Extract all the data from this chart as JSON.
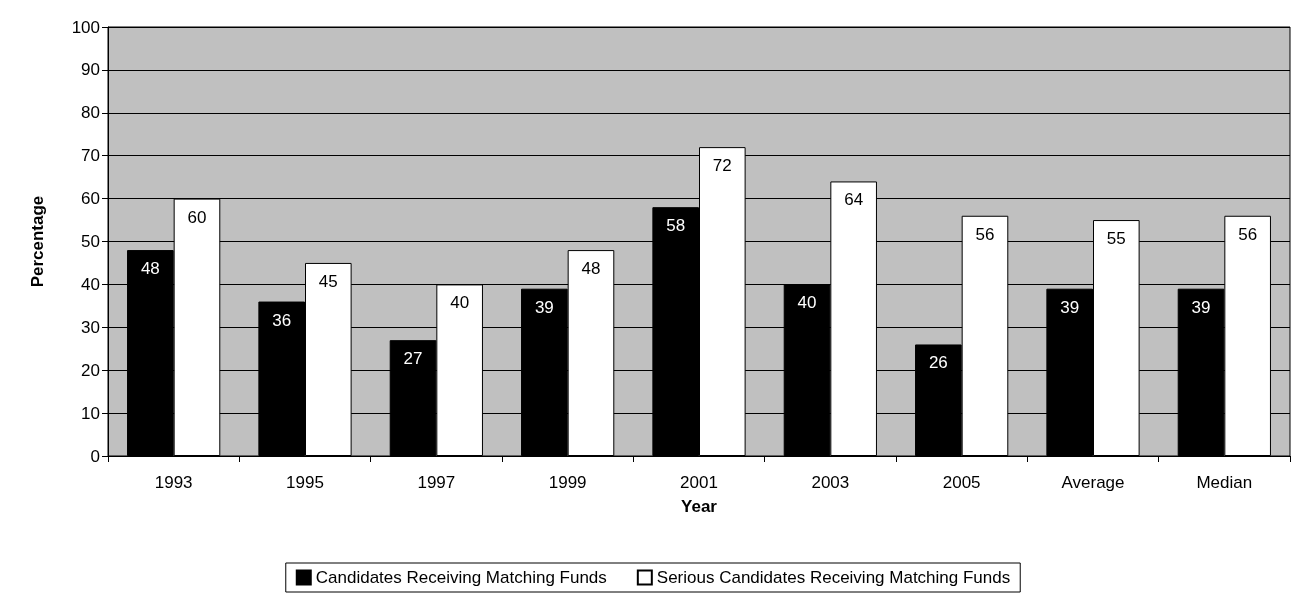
{
  "chart_data": {
    "type": "bar",
    "xlabel": "Year",
    "ylabel": "Percentage",
    "categories": [
      "1993",
      "1995",
      "1997",
      "1999",
      "2001",
      "2003",
      "2005",
      "Average",
      "Median"
    ],
    "series": [
      {
        "name": "Candidates Receiving Matching Funds",
        "color": "#000000",
        "values": [
          48,
          36,
          27,
          39,
          58,
          40,
          26,
          39,
          39
        ]
      },
      {
        "name": "Serious Candidates Receiving Matching Funds",
        "color": "#ffffff",
        "values": [
          60,
          45,
          40,
          48,
          72,
          64,
          56,
          55,
          56
        ]
      }
    ],
    "ylim": [
      0,
      100
    ],
    "yticks": [
      0,
      10,
      20,
      30,
      40,
      50,
      60,
      70,
      80,
      90,
      100
    ],
    "grid": "y",
    "legend": "bottom",
    "data_labels": true
  }
}
